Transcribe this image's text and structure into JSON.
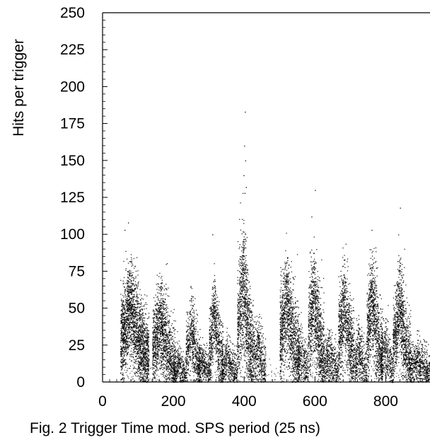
{
  "chart_data": {
    "type": "scatter",
    "caption": "Fig. 2 Trigger Time mod. SPS period (25 ns)",
    "ylabel": "Hits per trigger",
    "xlabel": "",
    "xlim": [
      0,
      925
    ],
    "ylim": [
      0,
      250
    ],
    "x_ticks": [
      0,
      200,
      400,
      600,
      800
    ],
    "y_ticks": [
      0,
      25,
      50,
      75,
      100,
      125,
      150,
      175,
      200,
      225,
      250
    ],
    "grid": false,
    "legend": "none",
    "point_color": "#000000",
    "clusters": [
      {
        "x_start": 50,
        "x_end": 130,
        "peak_y": 50,
        "spread": 16,
        "density": 1.0
      },
      {
        "x_start": 140,
        "x_end": 205,
        "peak_y": 40,
        "spread": 15,
        "density": 0.8
      },
      {
        "x_start": 200,
        "x_end": 235,
        "peak_y": 12,
        "spread": 7,
        "density": 0.4
      },
      {
        "x_start": 235,
        "x_end": 275,
        "peak_y": 35,
        "spread": 12,
        "density": 0.6
      },
      {
        "x_start": 270,
        "x_end": 305,
        "peak_y": 15,
        "spread": 7,
        "density": 0.4
      },
      {
        "x_start": 300,
        "x_end": 340,
        "peak_y": 45,
        "spread": 13,
        "density": 0.65
      },
      {
        "x_start": 335,
        "x_end": 380,
        "peak_y": 17,
        "spread": 8,
        "density": 0.4
      },
      {
        "x_start": 380,
        "x_end": 425,
        "peak_y": 65,
        "spread": 20,
        "density": 0.95
      },
      {
        "x_start": 425,
        "x_end": 460,
        "peak_y": 25,
        "spread": 10,
        "density": 0.5
      },
      {
        "x_start": 500,
        "x_end": 555,
        "peak_y": 55,
        "spread": 17,
        "density": 0.85
      },
      {
        "x_start": 550,
        "x_end": 580,
        "peak_y": 22,
        "spread": 9,
        "density": 0.4
      },
      {
        "x_start": 580,
        "x_end": 625,
        "peak_y": 57,
        "spread": 17,
        "density": 0.85
      },
      {
        "x_start": 625,
        "x_end": 665,
        "peak_y": 20,
        "spread": 9,
        "density": 0.45
      },
      {
        "x_start": 665,
        "x_end": 710,
        "peak_y": 52,
        "spread": 16,
        "density": 0.8
      },
      {
        "x_start": 710,
        "x_end": 745,
        "peak_y": 22,
        "spread": 10,
        "density": 0.45
      },
      {
        "x_start": 745,
        "x_end": 790,
        "peak_y": 55,
        "spread": 17,
        "density": 0.85
      },
      {
        "x_start": 785,
        "x_end": 820,
        "peak_y": 25,
        "spread": 10,
        "density": 0.45
      },
      {
        "x_start": 820,
        "x_end": 870,
        "peak_y": 50,
        "spread": 16,
        "density": 0.8
      },
      {
        "x_start": 870,
        "x_end": 925,
        "peak_y": 15,
        "spread": 8,
        "density": 0.45
      }
    ],
    "outliers": [
      [
        402,
        183
      ],
      [
        400,
        160
      ],
      [
        403,
        150
      ],
      [
        398,
        140
      ],
      [
        405,
        132
      ],
      [
        401,
        128
      ],
      [
        600,
        130
      ],
      [
        840,
        118
      ],
      [
        760,
        103
      ],
      [
        62,
        103
      ],
      [
        72,
        108
      ],
      [
        310,
        100
      ],
      [
        590,
        112
      ]
    ]
  }
}
